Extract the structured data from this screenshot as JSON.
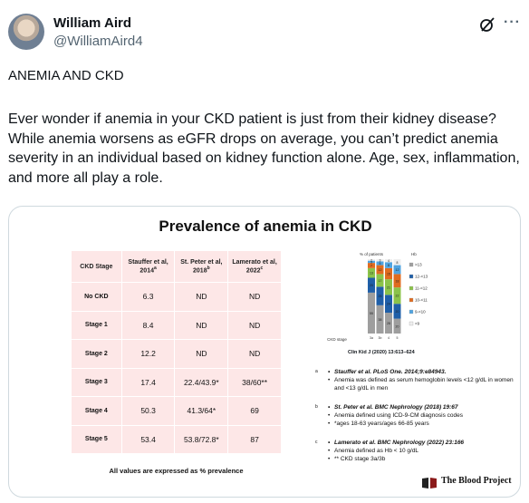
{
  "author": {
    "name": "William Aird",
    "handle": "@WilliamAird4"
  },
  "tweet": {
    "title": "ANEMIA AND CKD",
    "body": "Ever wonder if anemia in your CKD patient is just from their kidney disease? While anemia worsens as eGFR drops on average, you can’t predict anemia severity in an individual based on kidney function alone. Age, sex, inflammation, and more all play a role."
  },
  "slide": {
    "title": "Prevalence of anemia in CKD",
    "table": {
      "headers": [
        "CKD Stage",
        "Stauffer et al, 2014",
        "St. Peter et al, 2018",
        "Lamerato et al, 2022"
      ],
      "header_marks": [
        "",
        "a",
        "b",
        "c"
      ],
      "rows": [
        [
          "No CKD",
          "6.3",
          "ND",
          "ND"
        ],
        [
          "Stage 1",
          "8.4",
          "ND",
          "ND"
        ],
        [
          "Stage 2",
          "12.2",
          "ND",
          "ND"
        ],
        [
          "Stage 3",
          "17.4",
          "22.4/43.9*",
          "38/60**"
        ],
        [
          "Stage 4",
          "50.3",
          "41.3/64*",
          "69"
        ],
        [
          "Stage 5",
          "53.4",
          "53.8/72.8*",
          "87"
        ]
      ]
    },
    "footnote": "All values are expressed as % prevalence",
    "chart_citation": "Clin Kid J (2020) 13:613–624",
    "chart_labels": {
      "ylabel": "% of patients",
      "xlabel": "CKD stage",
      "legend_title": "Hb",
      "legend": [
        ">13",
        "12-<13",
        "11-<12",
        "10-<11",
        "9-<10",
        "<9"
      ]
    },
    "references": [
      {
        "letter": "a",
        "cite": "Stauffer et al. PLoS One. 2014;9:e84943.",
        "notes": [
          "Anemia was defined as serum hemoglobin levels <12 g/dL in women and <13 g/dL in men"
        ]
      },
      {
        "letter": "b",
        "cite": "St. Peter et al. BMC Nephrology (2018) 19:67",
        "notes": [
          "Anemia defined using ICD-9-CM diagnosis codes",
          "*ages 18-63 years/ages 66-85 years"
        ]
      },
      {
        "letter": "c",
        "cite": "Lamerato et al. BMC Nephrology (2022) 23:166",
        "notes": [
          "Anemia defined as Hb < 10 g/dL",
          "** CKD stage 3a/3b"
        ]
      }
    ],
    "logo_text": "The Blood Project"
  },
  "chart_data": {
    "type": "bar",
    "stacked": true,
    "categories": [
      "3a",
      "3b",
      "4",
      "5"
    ],
    "series": [
      {
        "name": ">13",
        "color": "#9e9e9e",
        "values": [
          55,
          38,
          28,
          20
        ]
      },
      {
        "name": "12-<13",
        "color": "#1f5fa8",
        "values": [
          20,
          25,
          24,
          20
        ]
      },
      {
        "name": "11-<12",
        "color": "#8bc34a",
        "values": [
          13,
          17,
          21,
          22
        ]
      },
      {
        "name": "10-<11",
        "color": "#e06b1f",
        "values": [
          7,
          12,
          15,
          18
        ]
      },
      {
        "name": "9-<10",
        "color": "#4fa3e0",
        "values": [
          3,
          5,
          8,
          12
        ]
      },
      {
        "name": "<9",
        "color": "#eeeeee",
        "values": [
          2,
          3,
          4,
          8
        ]
      }
    ],
    "ylim": [
      0,
      100
    ]
  }
}
